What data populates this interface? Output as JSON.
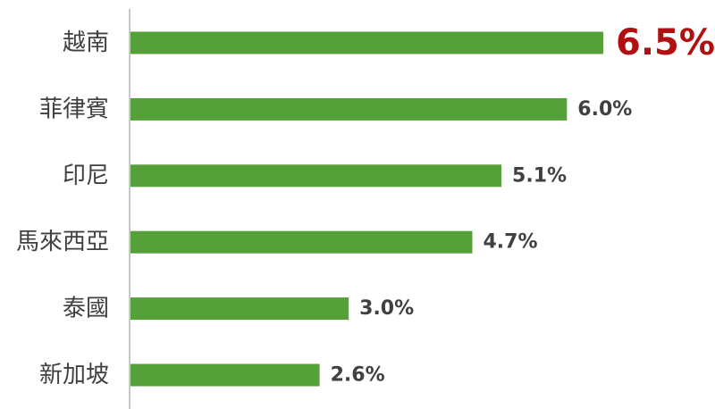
{
  "chart_data": {
    "type": "bar",
    "orientation": "horizontal",
    "categories": [
      "越南",
      "菲律賓",
      "印尼",
      "馬來西亞",
      "泰國",
      "新加坡"
    ],
    "values": [
      6.5,
      6.0,
      5.1,
      4.7,
      3.0,
      2.6
    ],
    "value_labels": [
      "6.5%",
      "6.0%",
      "5.1%",
      "4.7%",
      "3.0%",
      "2.6%"
    ],
    "highlight_index": 0,
    "colors": {
      "bar": "#56a03a",
      "axis": "#c8c8c8",
      "label": "#404040",
      "highlight_label": "#b01010"
    },
    "xlim": [
      0,
      6.5
    ],
    "grid": false,
    "legend": "none"
  }
}
